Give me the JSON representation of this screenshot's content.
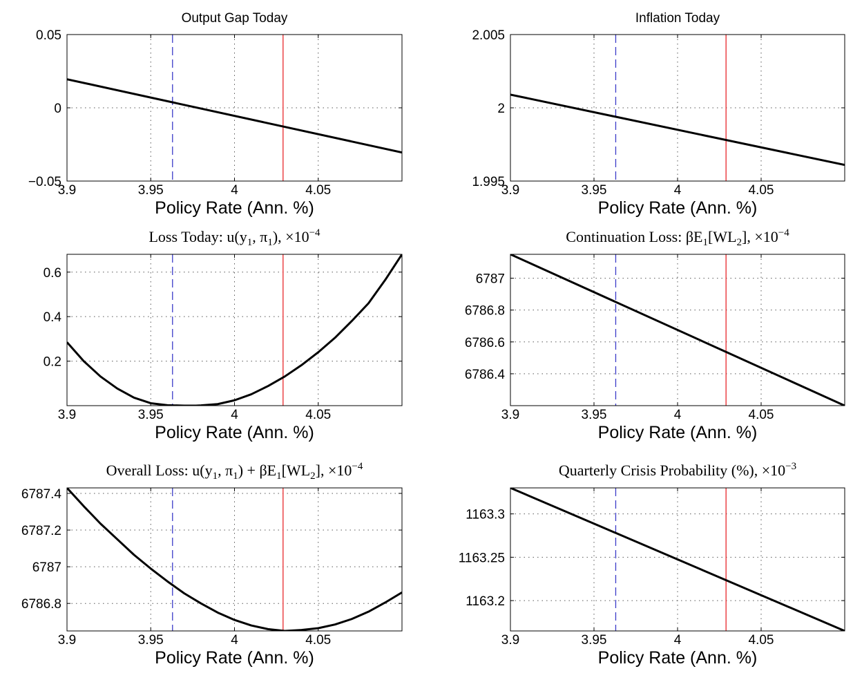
{
  "chart_data": [
    {
      "type": "line",
      "title": "Output Gap Today",
      "title_style": "sans",
      "xlabel": "Policy Rate (Ann. %)",
      "ylabel": "",
      "xlim": [
        3.9,
        4.1
      ],
      "ylim": [
        -0.05,
        0.05
      ],
      "xticks": [
        3.9,
        3.95,
        4,
        4.05
      ],
      "xtick_labels": [
        "3.9",
        "3.95",
        "4",
        "4.05"
      ],
      "yticks": [
        -0.05,
        0,
        0.05
      ],
      "ytick_labels": [
        "−0.05",
        "0",
        "0.05"
      ],
      "grid": true,
      "series": [
        {
          "color": "#000000",
          "x": [
            3.9,
            4.1
          ],
          "y": [
            0.0195,
            -0.0305
          ]
        }
      ],
      "vlines": [
        {
          "x": 3.963,
          "color": "#3a3ac8",
          "style": "dashed"
        },
        {
          "x": 4.029,
          "color": "#e8262a",
          "style": "solid"
        }
      ]
    },
    {
      "type": "line",
      "title": "Inflation Today",
      "title_style": "sans",
      "xlabel": "Policy Rate (Ann. %)",
      "ylabel": "",
      "xlim": [
        3.9,
        4.1
      ],
      "ylim": [
        1.995,
        2.005
      ],
      "xticks": [
        3.9,
        3.95,
        4,
        4.05
      ],
      "xtick_labels": [
        "3.9",
        "3.95",
        "4",
        "4.05"
      ],
      "yticks": [
        1.995,
        2,
        2.005
      ],
      "ytick_labels": [
        "1.995",
        "2",
        "2.005"
      ],
      "grid": true,
      "series": [
        {
          "color": "#000000",
          "x": [
            3.9,
            4.1
          ],
          "y": [
            2.0009,
            1.9961
          ]
        }
      ],
      "vlines": [
        {
          "x": 3.963,
          "color": "#3a3ac8",
          "style": "dashed"
        },
        {
          "x": 4.029,
          "color": "#e8262a",
          "style": "solid"
        }
      ]
    },
    {
      "type": "line",
      "title_parts": [
        "Loss Today: ",
        "u(y",
        "1",
        ", π",
        "1",
        "), ×10",
        "−4"
      ],
      "title_style": "serif",
      "xlabel": "Policy Rate (Ann. %)",
      "ylabel": "",
      "xlim": [
        3.9,
        4.1
      ],
      "ylim": [
        0,
        0.68
      ],
      "xticks": [
        3.9,
        3.95,
        4,
        4.05
      ],
      "xtick_labels": [
        "3.9",
        "3.95",
        "4",
        "4.05"
      ],
      "yticks": [
        0.2,
        0.4,
        0.6
      ],
      "ytick_labels": [
        "0.2",
        "0.4",
        "0.6"
      ],
      "grid": true,
      "series": [
        {
          "color": "#000000",
          "x": [
            3.9,
            3.91,
            3.92,
            3.93,
            3.94,
            3.95,
            3.96,
            3.97,
            3.977,
            3.98,
            3.99,
            4.0,
            4.01,
            4.02,
            4.03,
            4.04,
            4.05,
            4.06,
            4.07,
            4.08,
            4.09,
            4.1
          ],
          "y": [
            0.285,
            0.2,
            0.131,
            0.077,
            0.036,
            0.011,
            0.002,
            0.0,
            0.0,
            0.001,
            0.007,
            0.024,
            0.051,
            0.088,
            0.131,
            0.182,
            0.24,
            0.305,
            0.38,
            0.46,
            0.565,
            0.68
          ]
        }
      ],
      "vlines": [
        {
          "x": 3.963,
          "color": "#3a3ac8",
          "style": "dashed"
        },
        {
          "x": 4.029,
          "color": "#e8262a",
          "style": "solid"
        }
      ]
    },
    {
      "type": "line",
      "title_parts": [
        "Continuation Loss: ",
        "βE",
        "1",
        "[WL",
        "2",
        "], ×10",
        "−4"
      ],
      "title_style": "serif",
      "xlabel": "Policy Rate (Ann. %)",
      "ylabel": "",
      "xlim": [
        3.9,
        4.1
      ],
      "ylim": [
        6786.2,
        6787.15
      ],
      "xticks": [
        3.9,
        3.95,
        4,
        4.05
      ],
      "xtick_labels": [
        "3.9",
        "3.95",
        "4",
        "4.05"
      ],
      "yticks": [
        6786.4,
        6786.6,
        6786.8,
        6787
      ],
      "ytick_labels": [
        "6786.4",
        "6786.6",
        "6786.8",
        "6787"
      ],
      "grid": true,
      "series": [
        {
          "color": "#000000",
          "x": [
            3.9,
            4.1
          ],
          "y": [
            6787.15,
            6786.2
          ]
        }
      ],
      "vlines": [
        {
          "x": 3.963,
          "color": "#3a3ac8",
          "style": "dashed"
        },
        {
          "x": 4.029,
          "color": "#e8262a",
          "style": "solid"
        }
      ]
    },
    {
      "type": "line",
      "title_parts": [
        "Overall Loss: ",
        "u(y",
        "1",
        ", π",
        "1",
        ") + βE",
        "1",
        "[WL",
        "2",
        "], ×10",
        "−4"
      ],
      "title_style": "serif",
      "xlabel": "Policy Rate (Ann. %)",
      "ylabel": "",
      "xlim": [
        3.9,
        4.1
      ],
      "ylim": [
        6786.65,
        6787.43
      ],
      "xticks": [
        3.9,
        3.95,
        4,
        4.05
      ],
      "xtick_labels": [
        "3.9",
        "3.95",
        "4",
        "4.05"
      ],
      "yticks": [
        6786.8,
        6787,
        6787.2,
        6787.4
      ],
      "ytick_labels": [
        "6786.8",
        "6787",
        "6787.2",
        "6787.4"
      ],
      "grid": true,
      "series": [
        {
          "color": "#000000",
          "x": [
            3.9,
            3.91,
            3.92,
            3.93,
            3.94,
            3.95,
            3.96,
            3.97,
            3.98,
            3.99,
            4.0,
            4.01,
            4.02,
            4.03,
            4.04,
            4.05,
            4.06,
            4.07,
            4.08,
            4.09,
            4.1
          ],
          "y": [
            6787.43,
            6787.33,
            6787.235,
            6787.15,
            6787.065,
            6786.99,
            6786.92,
            6786.855,
            6786.8,
            6786.75,
            6786.71,
            6786.68,
            6786.66,
            6786.65,
            6786.655,
            6786.665,
            6786.685,
            6786.715,
            6786.755,
            6786.805,
            6786.86
          ]
        }
      ],
      "vlines": [
        {
          "x": 3.963,
          "color": "#3a3ac8",
          "style": "dashed"
        },
        {
          "x": 4.029,
          "color": "#e8262a",
          "style": "solid"
        }
      ]
    },
    {
      "type": "line",
      "title_parts": [
        "Quarterly Crisis Probability (%), ×10",
        "−3"
      ],
      "title_style": "serif",
      "xlabel": "Policy Rate (Ann. %)",
      "ylabel": "",
      "xlim": [
        3.9,
        4.1
      ],
      "ylim": [
        1163.165,
        1163.33
      ],
      "xticks": [
        3.9,
        3.95,
        4,
        4.05
      ],
      "xtick_labels": [
        "3.9",
        "3.95",
        "4",
        "4.05"
      ],
      "yticks": [
        1163.2,
        1163.25,
        1163.3
      ],
      "ytick_labels": [
        "1163.2",
        "1163.25",
        "1163.3"
      ],
      "grid": true,
      "series": [
        {
          "color": "#000000",
          "x": [
            3.9,
            4.1
          ],
          "y": [
            1163.33,
            1163.165
          ]
        }
      ],
      "vlines": [
        {
          "x": 3.963,
          "color": "#3a3ac8",
          "style": "dashed"
        },
        {
          "x": 4.029,
          "color": "#e8262a",
          "style": "solid"
        }
      ]
    }
  ]
}
